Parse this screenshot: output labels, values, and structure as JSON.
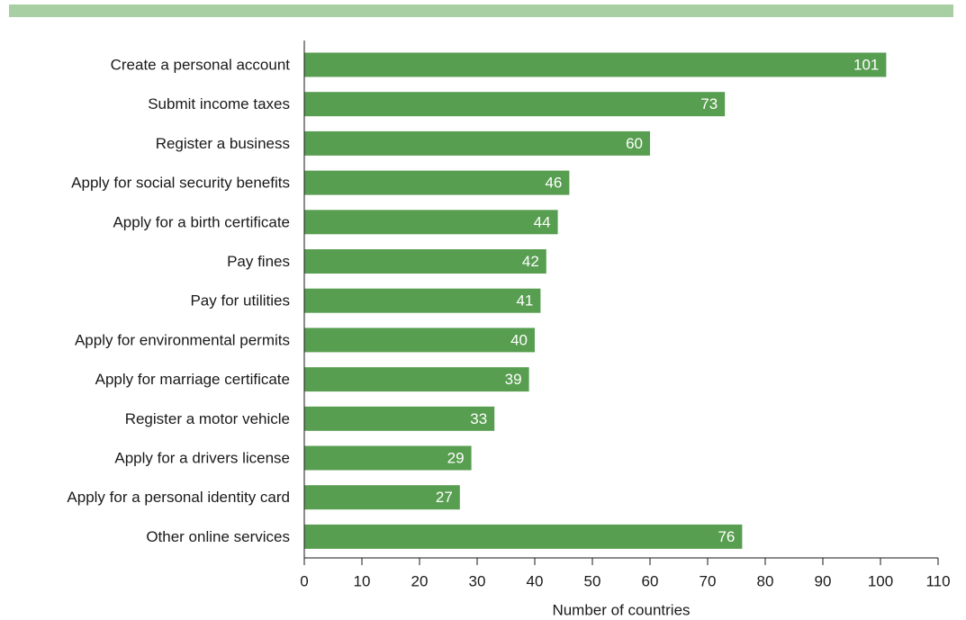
{
  "colors": {
    "bar": "#589e50",
    "top_band": "#a8cfa3",
    "axis": "#1a1a1a",
    "value_text": "#ffffff"
  },
  "chart_data": {
    "type": "bar",
    "orientation": "horizontal",
    "categories": [
      "Create a personal account",
      "Submit income taxes",
      "Register a business",
      "Apply for social security benefits",
      "Apply for a birth certificate",
      "Pay fines",
      "Pay for utilities",
      "Apply for environmental permits",
      "Apply for marriage certificate",
      "Register a motor vehicle",
      "Apply for a drivers license",
      "Apply for a personal identity card",
      "Other online services"
    ],
    "values": [
      101,
      73,
      60,
      46,
      44,
      42,
      41,
      40,
      39,
      33,
      29,
      27,
      76
    ],
    "xlabel": "Number of countries",
    "ylabel": "",
    "xlim": [
      0,
      110
    ],
    "xticks": [
      "0",
      "10",
      "20",
      "30",
      "40",
      "50",
      "60",
      "70",
      "80",
      "90",
      "100",
      "110"
    ],
    "grid": false,
    "data_labels": "inside-end"
  }
}
